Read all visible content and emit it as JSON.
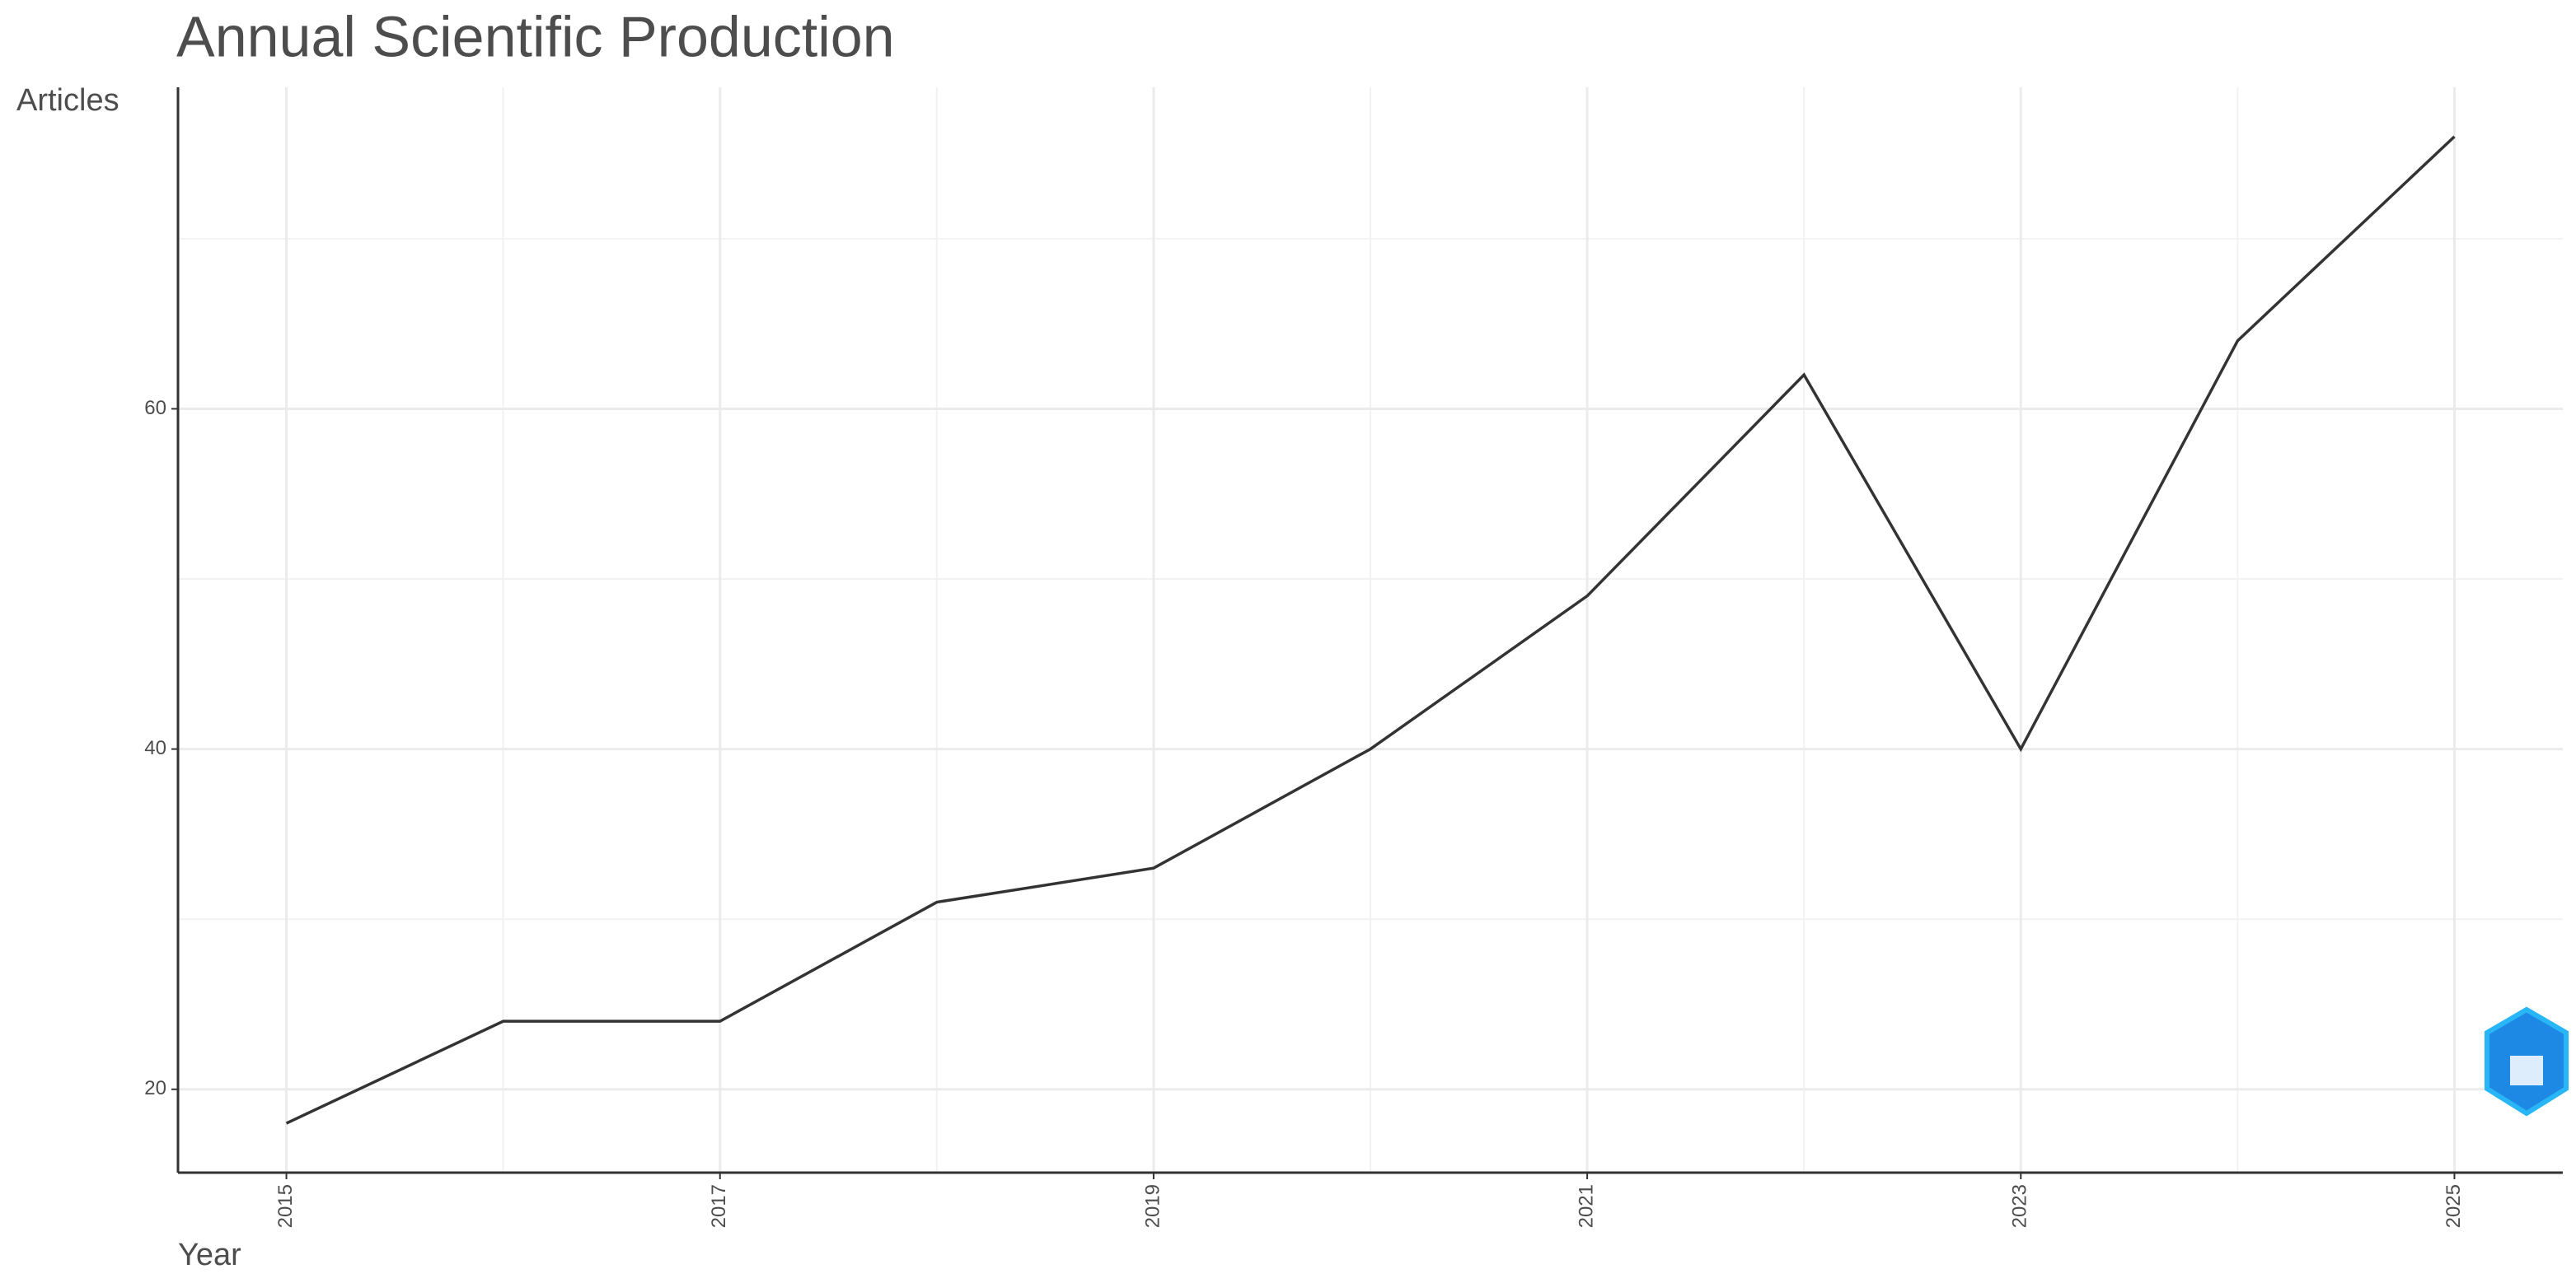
{
  "chart_data": {
    "type": "line",
    "title": "Annual Scientific Production",
    "x_label": "Year",
    "y_label": "Articles",
    "x": [
      2015,
      2016,
      2017,
      2018,
      2019,
      2020,
      2021,
      2022,
      2023,
      2024,
      2025
    ],
    "values": [
      18,
      24,
      24,
      31,
      33,
      40,
      49,
      62,
      40,
      64,
      76
    ],
    "color": "#333333",
    "xlim": [
      2014.5,
      2025.5
    ],
    "xticks": [
      2015,
      2017,
      2019,
      2021,
      2023,
      2025
    ],
    "ylim": [
      15.1,
      78.9
    ],
    "yticks": [
      20,
      40,
      60
    ],
    "minor_xticks": [
      2016,
      2018,
      2020,
      2022,
      2024
    ],
    "minor_yticks": [
      30,
      50,
      70
    ],
    "grid": true
  }
}
